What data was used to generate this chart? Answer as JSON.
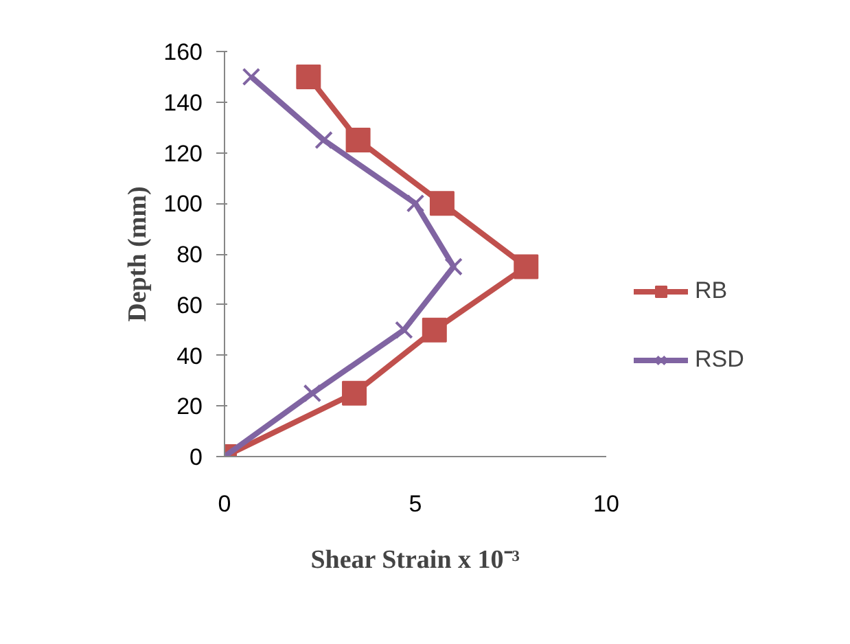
{
  "chart_data": {
    "type": "line",
    "xlabel": "Shear Strain x 10⁻³",
    "ylabel": "Depth (mm)",
    "xlim": [
      0,
      10
    ],
    "xticks": [
      0,
      5,
      10
    ],
    "ylim": [
      0,
      160
    ],
    "yticks": [
      0,
      20,
      40,
      60,
      80,
      100,
      120,
      140,
      160
    ],
    "grid": false,
    "legend": "right",
    "series": [
      {
        "name": "RB",
        "color": "#c0504d",
        "marker": "square",
        "x": [
          0,
          3.4,
          5.5,
          7.9,
          5.7,
          3.5,
          2.2
        ],
        "values": [
          0,
          25,
          50,
          75,
          100,
          125,
          150
        ]
      },
      {
        "name": "RSD",
        "color": "#8064a2",
        "marker": "cross",
        "x": [
          0,
          2.3,
          4.7,
          6.0,
          5.0,
          2.6,
          0.7
        ],
        "values": [
          0,
          25,
          50,
          75,
          100,
          125,
          150
        ]
      }
    ]
  }
}
